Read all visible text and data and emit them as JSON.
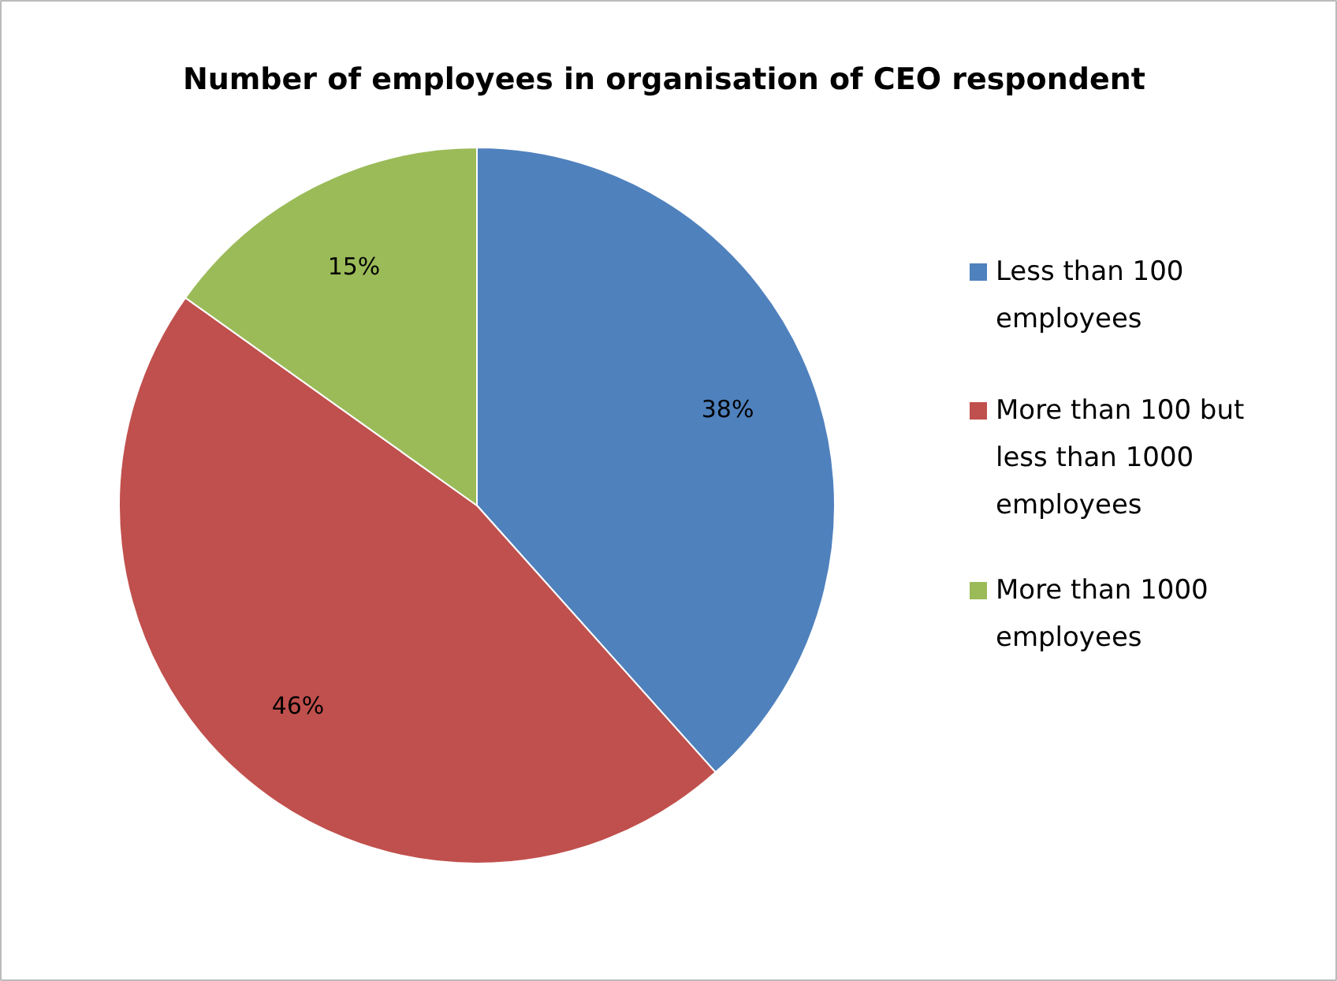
{
  "chart_data": {
    "type": "pie",
    "title": "Number of employees in organisation of  CEO respondent",
    "categories": [
      "Less than 100 employees",
      "More than 100 but less than 1000 employees",
      "More than 1000 employees"
    ],
    "values": [
      38,
      46,
      15
    ],
    "colors": [
      "#4f81bd",
      "#c0504d",
      "#9bbb59"
    ],
    "value_labels": [
      "38%",
      "46%",
      "15%"
    ],
    "legend": "right"
  }
}
